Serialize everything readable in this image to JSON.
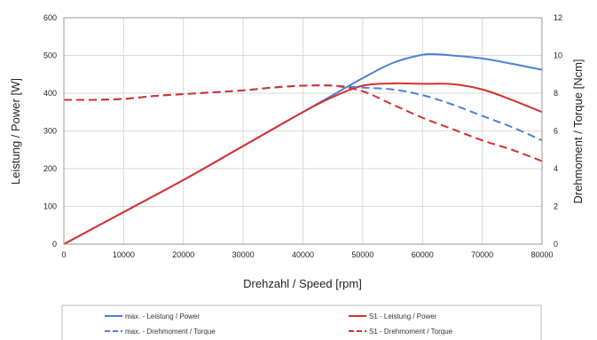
{
  "chart_data": {
    "type": "line",
    "xlabel": "Drehzahl / Speed [rpm]",
    "ylabel_left": "Leistung / Power [W]",
    "ylabel_right": "Drehmoment / Torque [Ncm]",
    "xlim": [
      0,
      80000
    ],
    "ylim_left": [
      0,
      600
    ],
    "ylim_right": [
      0,
      12
    ],
    "x_ticks": [
      "0",
      "10000",
      "20000",
      "30000",
      "40000",
      "50000",
      "60000",
      "70000",
      "80000"
    ],
    "y_left_ticks": [
      "0",
      "100",
      "200",
      "300",
      "400",
      "500",
      "600"
    ],
    "y_right_ticks": [
      "0",
      "2",
      "4",
      "6",
      "8",
      "10",
      "12"
    ],
    "grid": true,
    "legend_position": "bottom",
    "series": [
      {
        "name": "max. - Leistung / Power",
        "axis": "left",
        "color": "#4a7fdc",
        "dashed": false,
        "x": [
          0,
          10000,
          20000,
          30000,
          40000,
          45000,
          50000,
          55000,
          60000,
          62500,
          65000,
          70000,
          75000,
          80000
        ],
        "y": [
          0,
          85,
          170,
          260,
          350,
          395,
          440,
          480,
          502,
          503,
          500,
          492,
          478,
          462
        ]
      },
      {
        "name": "S1 - Leistung / Power",
        "axis": "left",
        "color": "#d9302c",
        "dashed": false,
        "x": [
          0,
          10000,
          20000,
          30000,
          40000,
          45000,
          50000,
          55000,
          60000,
          65000,
          70000,
          75000,
          80000
        ],
        "y": [
          0,
          85,
          170,
          260,
          350,
          390,
          420,
          426,
          425,
          424,
          410,
          382,
          350
        ]
      },
      {
        "name": "max. - Drehmoment / Torque",
        "axis": "right",
        "color": "#4a7fdc",
        "dashed": true,
        "x": [
          0,
          5000,
          10000,
          15000,
          20000,
          25000,
          30000,
          35000,
          40000,
          45000,
          50000,
          55000,
          60000,
          65000,
          70000,
          75000,
          80000
        ],
        "y": [
          7.65,
          7.65,
          7.7,
          7.85,
          7.95,
          8.05,
          8.15,
          8.3,
          8.4,
          8.4,
          8.3,
          8.2,
          7.9,
          7.4,
          6.8,
          6.2,
          5.5
        ]
      },
      {
        "name": "S1 - Drehmoment / Torque",
        "axis": "right",
        "color": "#d9302c",
        "dashed": true,
        "x": [
          0,
          5000,
          10000,
          15000,
          20000,
          25000,
          30000,
          35000,
          40000,
          45000,
          50000,
          55000,
          60000,
          65000,
          70000,
          75000,
          80000
        ],
        "y": [
          7.65,
          7.65,
          7.7,
          7.85,
          7.95,
          8.05,
          8.15,
          8.3,
          8.4,
          8.4,
          8.1,
          7.4,
          6.7,
          6.1,
          5.5,
          5.0,
          4.4
        ]
      }
    ]
  }
}
